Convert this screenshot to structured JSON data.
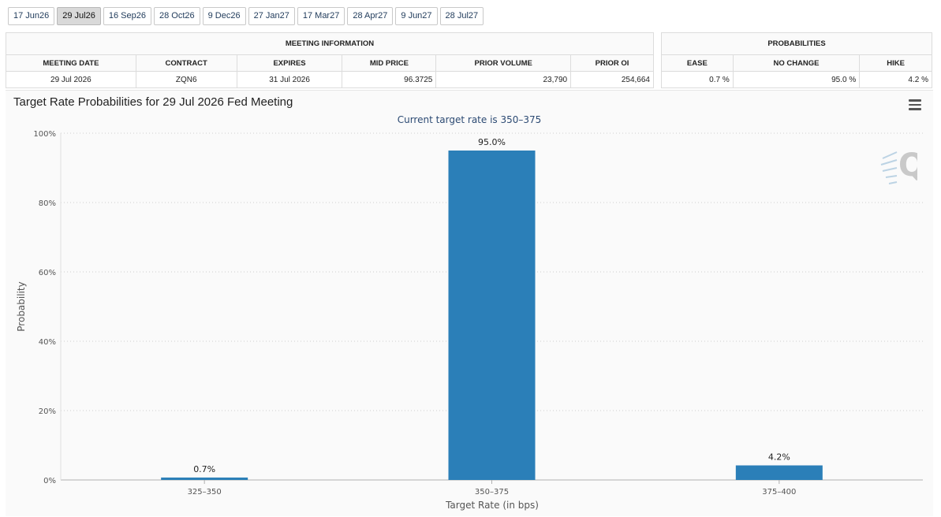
{
  "tabs": [
    "17 Jun26",
    "29 Jul26",
    "16 Sep26",
    "28 Oct26",
    "9 Dec26",
    "27 Jan27",
    "17 Mar27",
    "28 Apr27",
    "9 Jun27",
    "28 Jul27"
  ],
  "active_tab": "29 Jul26",
  "meeting_info": {
    "header": "MEETING INFORMATION",
    "columns": [
      "MEETING DATE",
      "CONTRACT",
      "EXPIRES",
      "MID PRICE",
      "PRIOR VOLUME",
      "PRIOR OI"
    ],
    "row": [
      "29 Jul 2026",
      "ZQN6",
      "31 Jul 2026",
      "96.3725",
      "23,790",
      "254,664"
    ]
  },
  "probabilities": {
    "header": "PROBABILITIES",
    "columns": [
      "EASE",
      "NO CHANGE",
      "HIKE"
    ],
    "row": [
      "0.7 %",
      "95.0 %",
      "4.2 %"
    ]
  },
  "chart_data": {
    "type": "bar",
    "title": "Target Rate Probabilities for 29 Jul 2026 Fed Meeting",
    "subtitle": "Current target rate is 350–375",
    "xlabel": "Target Rate (in bps)",
    "ylabel": "Probability",
    "categories": [
      "325–350",
      "350–375",
      "375–400"
    ],
    "values": [
      0.7,
      95.0,
      4.2
    ],
    "data_labels": [
      "0.7%",
      "95.0%",
      "4.2%"
    ],
    "ylim": [
      0,
      100
    ],
    "yticks": [
      "0%",
      "20%",
      "40%",
      "60%",
      "80%",
      "100%"
    ],
    "ytick_values": [
      0,
      20,
      40,
      60,
      80,
      100
    ],
    "grid": true,
    "bar_color": "#2b7fb8"
  }
}
